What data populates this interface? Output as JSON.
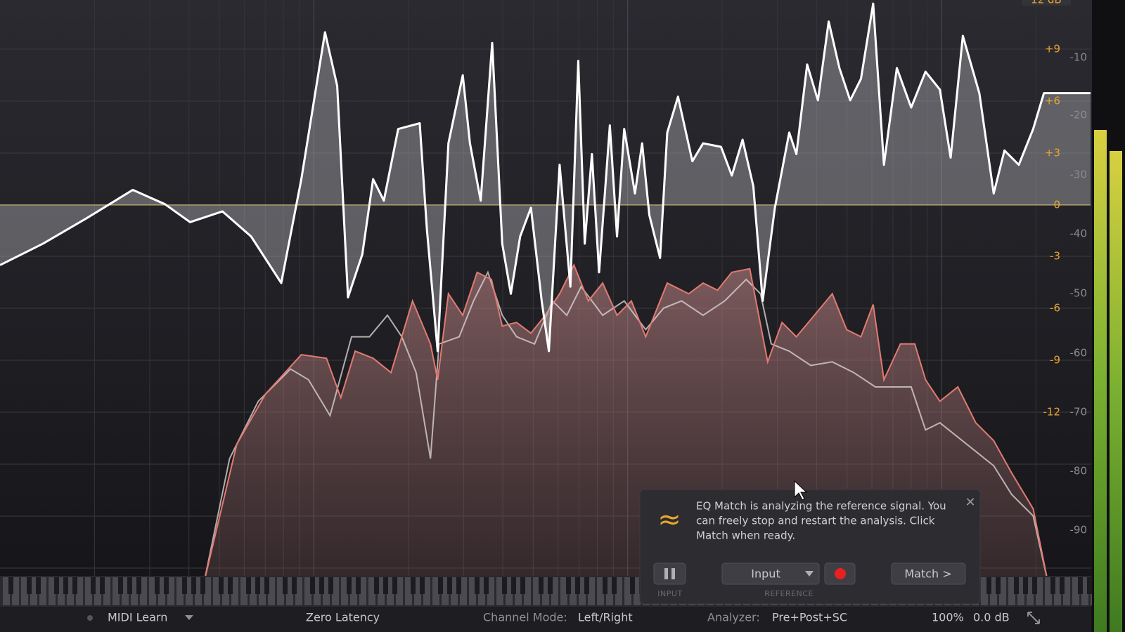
{
  "top_label": "12 dB",
  "gain_scale": [
    "+9",
    "+6",
    "+3",
    "0",
    "-3",
    "-6",
    "-9",
    "-12"
  ],
  "analyzer_scale": [
    "-10",
    "-20",
    "-30",
    "-40",
    "-50",
    "-60",
    "-70",
    "-80",
    "-90"
  ],
  "popup": {
    "lines": [
      "EQ Match is analyzing the reference signal. You",
      "can freely stop and restart the analysis. Click",
      "Match when ready."
    ],
    "source_button": "Input",
    "match_button": "Match >",
    "input_label": "INPUT",
    "reference_label": "REFERENCE"
  },
  "status_bar": {
    "midi": "MIDI Learn",
    "latency": "Zero Latency",
    "channel_mode_label": "Channel Mode:",
    "channel_mode": "Left/Right",
    "analyzer_label": "Analyzer:",
    "analyzer": "Pre+Post+SC",
    "zoom": "100%",
    "output_gain": "0.0 dB"
  }
}
